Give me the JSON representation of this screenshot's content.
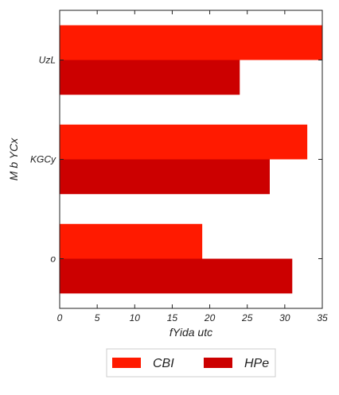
{
  "chart_data": {
    "type": "bar",
    "orientation": "horizontal",
    "title": "",
    "xlabel": "fYida utc",
    "ylabel": "M  b YCx",
    "categories": [
      "o",
      "KGCy",
      "UzL"
    ],
    "series": [
      {
        "name": "CBI",
        "values": [
          19,
          33,
          35
        ],
        "color": "#ff1a00"
      },
      {
        "name": "HPe",
        "values": [
          31,
          28,
          24
        ],
        "color": "#cc0000"
      }
    ],
    "xlim": [
      0,
      35
    ],
    "xticks": [
      0,
      5,
      10,
      15,
      20,
      25,
      30,
      35
    ],
    "grid": false,
    "legend_position": "bottom-center"
  }
}
